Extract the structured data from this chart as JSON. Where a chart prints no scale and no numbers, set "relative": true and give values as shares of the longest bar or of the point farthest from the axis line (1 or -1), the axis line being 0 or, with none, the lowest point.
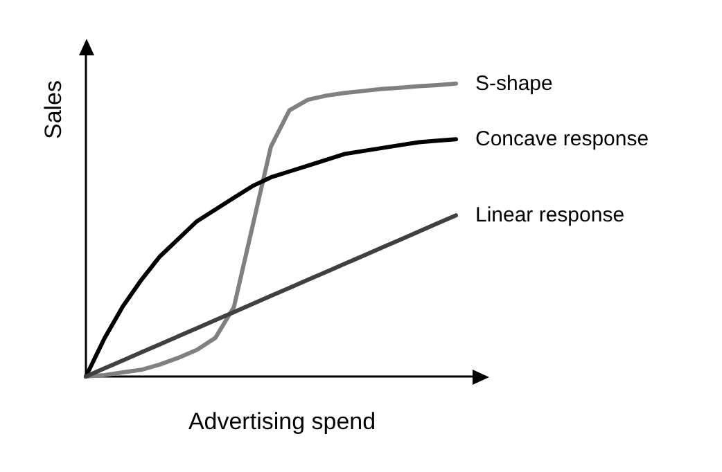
{
  "chart_data": {
    "type": "line",
    "relative": true,
    "xlabel": "Advertising spend",
    "ylabel": "Sales",
    "grid": false,
    "tick_labels": false,
    "marker": "none",
    "line_style": "solid",
    "categories": [
      null,
      null,
      null,
      null,
      null,
      null,
      null,
      null,
      null,
      null,
      null,
      null,
      null,
      null,
      null,
      null,
      null,
      null,
      null,
      null,
      null
    ],
    "series": [
      {
        "name": "S-shape",
        "color": "#808080",
        "values": [
          0,
          0.005,
          0.014,
          0.023,
          0.041,
          0.064,
          0.091,
          0.132,
          0.237,
          0.511,
          0.785,
          0.909,
          0.945,
          0.959,
          0.968,
          0.975,
          0.982,
          0.986,
          0.991,
          0.995,
          1
        ]
      },
      {
        "name": "Concave response",
        "color": "#000000",
        "values": [
          0,
          0.13,
          0.24,
          0.33,
          0.41,
          0.47,
          0.53,
          0.57,
          0.61,
          0.65,
          0.68,
          0.7,
          0.72,
          0.74,
          0.76,
          0.77,
          0.78,
          0.79,
          0.8,
          0.805,
          0.81
        ]
      },
      {
        "name": "Linear response",
        "color": "#404040",
        "values": [
          0,
          0.0275,
          0.055,
          0.0825,
          0.11,
          0.1375,
          0.165,
          0.1925,
          0.22,
          0.2475,
          0.275,
          0.3025,
          0.33,
          0.3575,
          0.385,
          0.4125,
          0.44,
          0.4675,
          0.495,
          0.5225,
          0.55
        ]
      }
    ]
  }
}
